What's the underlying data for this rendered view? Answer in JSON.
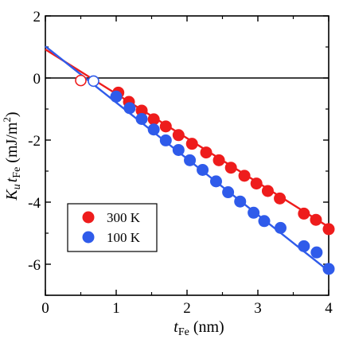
{
  "chart_data": {
    "type": "scatter",
    "xlabel": {
      "main": "t",
      "sub": "Fe",
      "unit": " (nm)"
    },
    "ylabel": {
      "k": "K",
      "ksub": "u",
      "t": "t",
      "tsub": "Fe",
      "unit": " (mJ/m",
      "sup": "2",
      "close": ")"
    },
    "xlim": [
      0,
      4
    ],
    "ylim": [
      -7,
      2
    ],
    "x_ticks": [
      0,
      1,
      2,
      3,
      4
    ],
    "x_tick_labels": [
      "0",
      "1",
      "2",
      "3",
      "4"
    ],
    "y_ticks": [
      -6,
      -4,
      -2,
      0,
      2
    ],
    "y_tick_labels": [
      "-6",
      "-4",
      "-2",
      "0",
      "2"
    ],
    "grid": false,
    "zero_line": true,
    "legend_position": "lower-left",
    "series": [
      {
        "name": "300 K",
        "color": "#ee1c1c",
        "points": [
          [
            1.03,
            -0.47
          ],
          [
            1.18,
            -0.77
          ],
          [
            1.36,
            -1.05
          ],
          [
            1.53,
            -1.33
          ],
          [
            1.7,
            -1.56
          ],
          [
            1.88,
            -1.84
          ],
          [
            2.07,
            -2.12
          ],
          [
            2.27,
            -2.4
          ],
          [
            2.45,
            -2.65
          ],
          [
            2.62,
            -2.89
          ],
          [
            2.81,
            -3.15
          ],
          [
            2.98,
            -3.4
          ],
          [
            3.14,
            -3.64
          ],
          [
            3.31,
            -3.88
          ],
          [
            3.65,
            -4.37
          ],
          [
            3.82,
            -4.57
          ],
          [
            4.0,
            -4.87
          ]
        ],
        "open_points": [
          [
            0.5,
            -0.08
          ]
        ],
        "fit": {
          "x0": 0.0,
          "y0": 0.92,
          "x1": 4.0,
          "y1": -4.8
        }
      },
      {
        "name": "100 K",
        "color": "#2f5bea",
        "points": [
          [
            1.0,
            -0.6
          ],
          [
            1.19,
            -0.97
          ],
          [
            1.36,
            -1.32
          ],
          [
            1.53,
            -1.66
          ],
          [
            1.7,
            -2.01
          ],
          [
            1.88,
            -2.32
          ],
          [
            2.04,
            -2.65
          ],
          [
            2.22,
            -2.96
          ],
          [
            2.41,
            -3.33
          ],
          [
            2.58,
            -3.68
          ],
          [
            2.75,
            -3.98
          ],
          [
            2.94,
            -4.34
          ],
          [
            3.09,
            -4.61
          ],
          [
            3.32,
            -4.83
          ],
          [
            3.65,
            -5.42
          ],
          [
            3.83,
            -5.62
          ],
          [
            4.0,
            -6.15
          ]
        ],
        "open_points": [
          [
            0.68,
            -0.1
          ]
        ],
        "fit": {
          "x0": 0.0,
          "y0": 1.02,
          "x1": 4.0,
          "y1": -6.22
        }
      }
    ]
  }
}
